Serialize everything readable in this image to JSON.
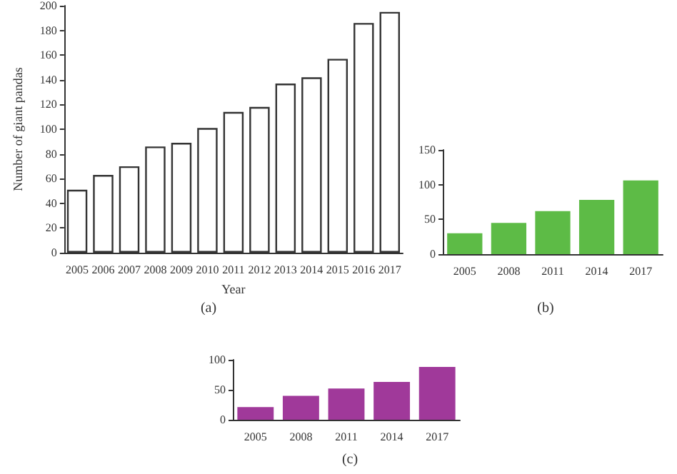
{
  "chart_data": [
    {
      "type": "bar",
      "xlabel": "Year",
      "ylabel": "Number of giant pandas",
      "annotations": [
        "(a)"
      ],
      "categories": [
        "2005",
        "2006",
        "2007",
        "2008",
        "2009",
        "2010",
        "2011",
        "2012",
        "2013",
        "2014",
        "2015",
        "2016",
        "2017"
      ],
      "values": [
        51,
        63,
        70,
        86,
        89,
        101,
        114,
        118,
        137,
        142,
        157,
        186,
        195
      ],
      "color": "#ffffff",
      "ylim": [
        0,
        200
      ],
      "yticks": [
        0,
        20,
        40,
        60,
        80,
        100,
        120,
        140,
        160,
        180,
        200
      ],
      "grid": false
    },
    {
      "type": "bar",
      "annotations": [
        "(b)"
      ],
      "categories": [
        "2005",
        "2008",
        "2011",
        "2014",
        "2017"
      ],
      "values": [
        30,
        45,
        62,
        78,
        106
      ],
      "color": "#5dbb46",
      "ylim": [
        0,
        150
      ],
      "yticks": [
        0,
        50,
        100,
        150
      ],
      "grid": false
    },
    {
      "type": "bar",
      "annotations": [
        "(c)"
      ],
      "categories": [
        "2005",
        "2008",
        "2011",
        "2014",
        "2017"
      ],
      "values": [
        21,
        40,
        52,
        63,
        88
      ],
      "color": "#a0399a",
      "ylim": [
        0,
        100
      ],
      "yticks": [
        0,
        50,
        100
      ],
      "grid": false
    }
  ]
}
